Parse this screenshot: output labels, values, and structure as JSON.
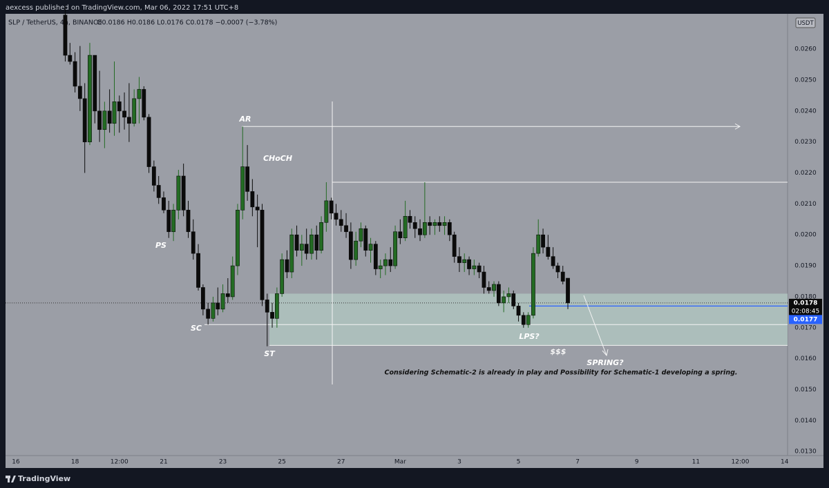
{
  "chart_data": {
    "type": "candlestick",
    "publisher": "aexcess published on TradingView.com, Mar 06, 2022 17:51 UTC+8",
    "symbol": "SLP / TetherUS, 4h, BINANCE",
    "ohlc_text": "O0.0186 H0.0186 L0.0176 C0.0178 −0.0007 (−3.78%)",
    "currency": "USDT",
    "brand": "TradingView",
    "up_color": "#236b23",
    "down_color": "#0b0b0b",
    "grid": false,
    "x": [
      1.67,
      1.83,
      2,
      2.17,
      2.33,
      2.5,
      2.67,
      2.83,
      3,
      3.17,
      3.33,
      3.5,
      3.67,
      3.83,
      4,
      4.17,
      4.33,
      4.5,
      4.67,
      4.83,
      5,
      5.17,
      5.33,
      5.5,
      5.67,
      5.83,
      6,
      6.17,
      6.33,
      6.5,
      6.67,
      6.83,
      7,
      7.17,
      7.33,
      7.5,
      7.67,
      7.83,
      8,
      8.17,
      8.33,
      8.5,
      8.67,
      8.83,
      9,
      9.17,
      9.33,
      9.5,
      9.67,
      9.83,
      10,
      10.17,
      10.33,
      10.5,
      10.67,
      10.83,
      11,
      11.17,
      11.33,
      11.5,
      11.67,
      11.83,
      12,
      12.17,
      12.33,
      12.5,
      12.67,
      12.83,
      13,
      13.17,
      13.33,
      13.5,
      13.67,
      13.83,
      14,
      14.17,
      14.33,
      14.5,
      14.67,
      14.83,
      15,
      15.17,
      15.33,
      15.5,
      15.67,
      15.83,
      16,
      16.17,
      16.33,
      16.5,
      16.67,
      16.83,
      17,
      17.17,
      17.33,
      17.5,
      17.67,
      17.83,
      18,
      18.17,
      18.33,
      18.5,
      18.67
    ],
    "open": [
      0.0271,
      0.0258,
      0.0256,
      0.0248,
      0.0244,
      0.023,
      0.0258,
      0.024,
      0.0234,
      0.024,
      0.0236,
      0.0243,
      0.024,
      0.0238,
      0.0236,
      0.0244,
      0.0247,
      0.0238,
      0.0222,
      0.0216,
      0.0212,
      0.0208,
      0.0201,
      0.0208,
      0.0219,
      0.0208,
      0.0201,
      0.0194,
      0.0183,
      0.0176,
      0.0173,
      0.0178,
      0.0176,
      0.0181,
      0.018,
      0.019,
      0.0208,
      0.0222,
      0.0214,
      0.0209,
      0.0208,
      0.0179,
      0.0175,
      0.0173,
      0.0181,
      0.0192,
      0.0188,
      0.02,
      0.0195,
      0.0197,
      0.0194,
      0.02,
      0.0195,
      0.0204,
      0.0211,
      0.0207,
      0.0205,
      0.0203,
      0.0201,
      0.0192,
      0.0198,
      0.0202,
      0.0195,
      0.0197,
      0.0189,
      0.019,
      0.0192,
      0.019,
      0.0201,
      0.0199,
      0.0206,
      0.0204,
      0.0202,
      0.02,
      0.0204,
      0.0203,
      0.0204,
      0.0203,
      0.0204,
      0.02,
      0.0193,
      0.0191,
      0.0192,
      0.0189,
      0.019,
      0.0188,
      0.0183,
      0.0182,
      0.0184,
      0.0178,
      0.018,
      0.0181,
      0.0177,
      0.0174,
      0.0171,
      0.0174,
      0.0194,
      0.02,
      0.0196,
      0.0193,
      0.019,
      0.0188,
      0.0186
    ],
    "high": [
      0.0274,
      0.0262,
      0.0259,
      0.0261,
      0.0249,
      0.0262,
      0.0258,
      0.0253,
      0.0243,
      0.0247,
      0.0256,
      0.0245,
      0.0246,
      0.0249,
      0.0247,
      0.0251,
      0.0248,
      0.0239,
      0.0224,
      0.0219,
      0.0214,
      0.0211,
      0.021,
      0.0221,
      0.0223,
      0.0211,
      0.0205,
      0.0197,
      0.0184,
      0.0178,
      0.018,
      0.0183,
      0.0184,
      0.0186,
      0.0193,
      0.021,
      0.0235,
      0.0229,
      0.0218,
      0.0213,
      0.021,
      0.0181,
      0.0178,
      0.0183,
      0.0194,
      0.0195,
      0.0202,
      0.0203,
      0.02,
      0.0202,
      0.0202,
      0.0203,
      0.0206,
      0.0217,
      0.0212,
      0.021,
      0.0208,
      0.0207,
      0.0204,
      0.0201,
      0.0204,
      0.0203,
      0.0199,
      0.0198,
      0.0192,
      0.0194,
      0.0196,
      0.0203,
      0.0205,
      0.0211,
      0.0208,
      0.0206,
      0.0205,
      0.0217,
      0.0206,
      0.0205,
      0.0206,
      0.0206,
      0.0205,
      0.0201,
      0.0196,
      0.0194,
      0.0193,
      0.0192,
      0.0191,
      0.019,
      0.0185,
      0.0185,
      0.0185,
      0.0182,
      0.0183,
      0.0182,
      0.0178,
      0.0175,
      0.0175,
      0.0196,
      0.0205,
      0.0202,
      0.02,
      0.0196,
      0.0191,
      0.019,
      0.0186
    ],
    "low": [
      0.0256,
      0.0255,
      0.0246,
      0.024,
      0.022,
      0.0229,
      0.0236,
      0.023,
      0.0228,
      0.0233,
      0.0232,
      0.0233,
      0.0234,
      0.023,
      0.0235,
      0.0236,
      0.0237,
      0.022,
      0.0214,
      0.021,
      0.0207,
      0.0199,
      0.0198,
      0.0205,
      0.0206,
      0.0199,
      0.0192,
      0.0182,
      0.0174,
      0.0171,
      0.0172,
      0.0174,
      0.0175,
      0.0178,
      0.0179,
      0.0187,
      0.0205,
      0.0211,
      0.0206,
      0.0196,
      0.0177,
      0.0164,
      0.017,
      0.017,
      0.018,
      0.0186,
      0.0186,
      0.0193,
      0.019,
      0.0192,
      0.0192,
      0.0192,
      0.0194,
      0.0201,
      0.0205,
      0.0203,
      0.0201,
      0.0199,
      0.0189,
      0.019,
      0.0196,
      0.0193,
      0.0191,
      0.0187,
      0.0186,
      0.0187,
      0.0188,
      0.0189,
      0.0197,
      0.0198,
      0.0202,
      0.0199,
      0.0198,
      0.0199,
      0.02,
      0.02,
      0.0201,
      0.02,
      0.0198,
      0.0191,
      0.0188,
      0.0188,
      0.0187,
      0.0187,
      0.0186,
      0.0181,
      0.0181,
      0.018,
      0.0177,
      0.0175,
      0.0178,
      0.0176,
      0.0172,
      0.017,
      0.017,
      0.0173,
      0.0193,
      0.0194,
      0.0192,
      0.0189,
      0.0186,
      0.0184,
      0.0176
    ],
    "close": [
      0.0258,
      0.0256,
      0.0248,
      0.0244,
      0.023,
      0.0258,
      0.024,
      0.0234,
      0.024,
      0.0236,
      0.0243,
      0.024,
      0.0238,
      0.0236,
      0.0244,
      0.0247,
      0.0238,
      0.0222,
      0.0216,
      0.0212,
      0.0208,
      0.0201,
      0.0208,
      0.0219,
      0.0208,
      0.0201,
      0.0194,
      0.0183,
      0.0176,
      0.0173,
      0.0178,
      0.0176,
      0.0181,
      0.018,
      0.019,
      0.0208,
      0.0222,
      0.0214,
      0.0209,
      0.0208,
      0.0179,
      0.0175,
      0.0173,
      0.0181,
      0.0192,
      0.0188,
      0.02,
      0.0195,
      0.0197,
      0.0194,
      0.02,
      0.0195,
      0.0204,
      0.0211,
      0.0207,
      0.0205,
      0.0203,
      0.0201,
      0.0192,
      0.0198,
      0.0202,
      0.0195,
      0.0197,
      0.0189,
      0.019,
      0.0192,
      0.019,
      0.0201,
      0.0199,
      0.0206,
      0.0204,
      0.0202,
      0.02,
      0.0204,
      0.0203,
      0.0204,
      0.0203,
      0.0204,
      0.02,
      0.0193,
      0.0191,
      0.0192,
      0.0189,
      0.019,
      0.0188,
      0.0183,
      0.0182,
      0.0184,
      0.0178,
      0.018,
      0.0181,
      0.0177,
      0.0174,
      0.0171,
      0.0174,
      0.0194,
      0.02,
      0.0196,
      0.0193,
      0.019,
      0.0188,
      0.0185,
      0.0178
    ],
    "xlim": [
      -0.35,
      26.1
    ],
    "xticks": [
      {
        "value": 0,
        "label": "16"
      },
      {
        "value": 2,
        "label": "18"
      },
      {
        "value": 3.5,
        "label": "12:00"
      },
      {
        "value": 5,
        "label": "21"
      },
      {
        "value": 7,
        "label": "23"
      },
      {
        "value": 9,
        "label": "25"
      },
      {
        "value": 11,
        "label": "27"
      },
      {
        "value": 13,
        "label": "Mar"
      },
      {
        "value": 15,
        "label": "3"
      },
      {
        "value": 17,
        "label": "5"
      },
      {
        "value": 19,
        "label": "7"
      },
      {
        "value": 21,
        "label": "9"
      },
      {
        "value": 23,
        "label": "11"
      },
      {
        "value": 24.5,
        "label": "12:00"
      },
      {
        "value": 26,
        "label": "14"
      }
    ],
    "ylim": [
      0.01287,
      0.02714
    ],
    "yticks": [
      {
        "value": 0.013,
        "label": "0.0130"
      },
      {
        "value": 0.014,
        "label": "0.0140"
      },
      {
        "value": 0.015,
        "label": "0.0150"
      },
      {
        "value": 0.016,
        "label": "0.0160"
      },
      {
        "value": 0.017,
        "label": "0.0170"
      },
      {
        "value": 0.018,
        "label": "0.0180"
      },
      {
        "value": 0.019,
        "label": "0.0190"
      },
      {
        "value": 0.02,
        "label": "0.0200"
      },
      {
        "value": 0.021,
        "label": "0.0210"
      },
      {
        "value": 0.022,
        "label": "0.0220"
      },
      {
        "value": 0.023,
        "label": "0.0230"
      },
      {
        "value": 0.024,
        "label": "0.0240"
      },
      {
        "value": 0.025,
        "label": "0.0250"
      },
      {
        "value": 0.026,
        "label": "0.0260"
      }
    ],
    "levels": [
      0.0235,
      0.0217,
      0.0171,
      0.0177,
      0.0178
    ],
    "zone": [
      0.01643,
      0.0181
    ],
    "price_labels": [
      {
        "value": 0.0178,
        "label": "0.0178"
      },
      {
        "value": 0.0177,
        "label": "0.0177"
      }
    ],
    "countdown": "02:08:45",
    "annotations": [
      "AR",
      "CHoCH",
      "PS",
      "SC",
      "ST",
      "LPS?",
      "$$$",
      "SPRING?",
      "Considering Schematic-2 is already in play and Possibility for Schematic-1 developing a spring."
    ]
  }
}
